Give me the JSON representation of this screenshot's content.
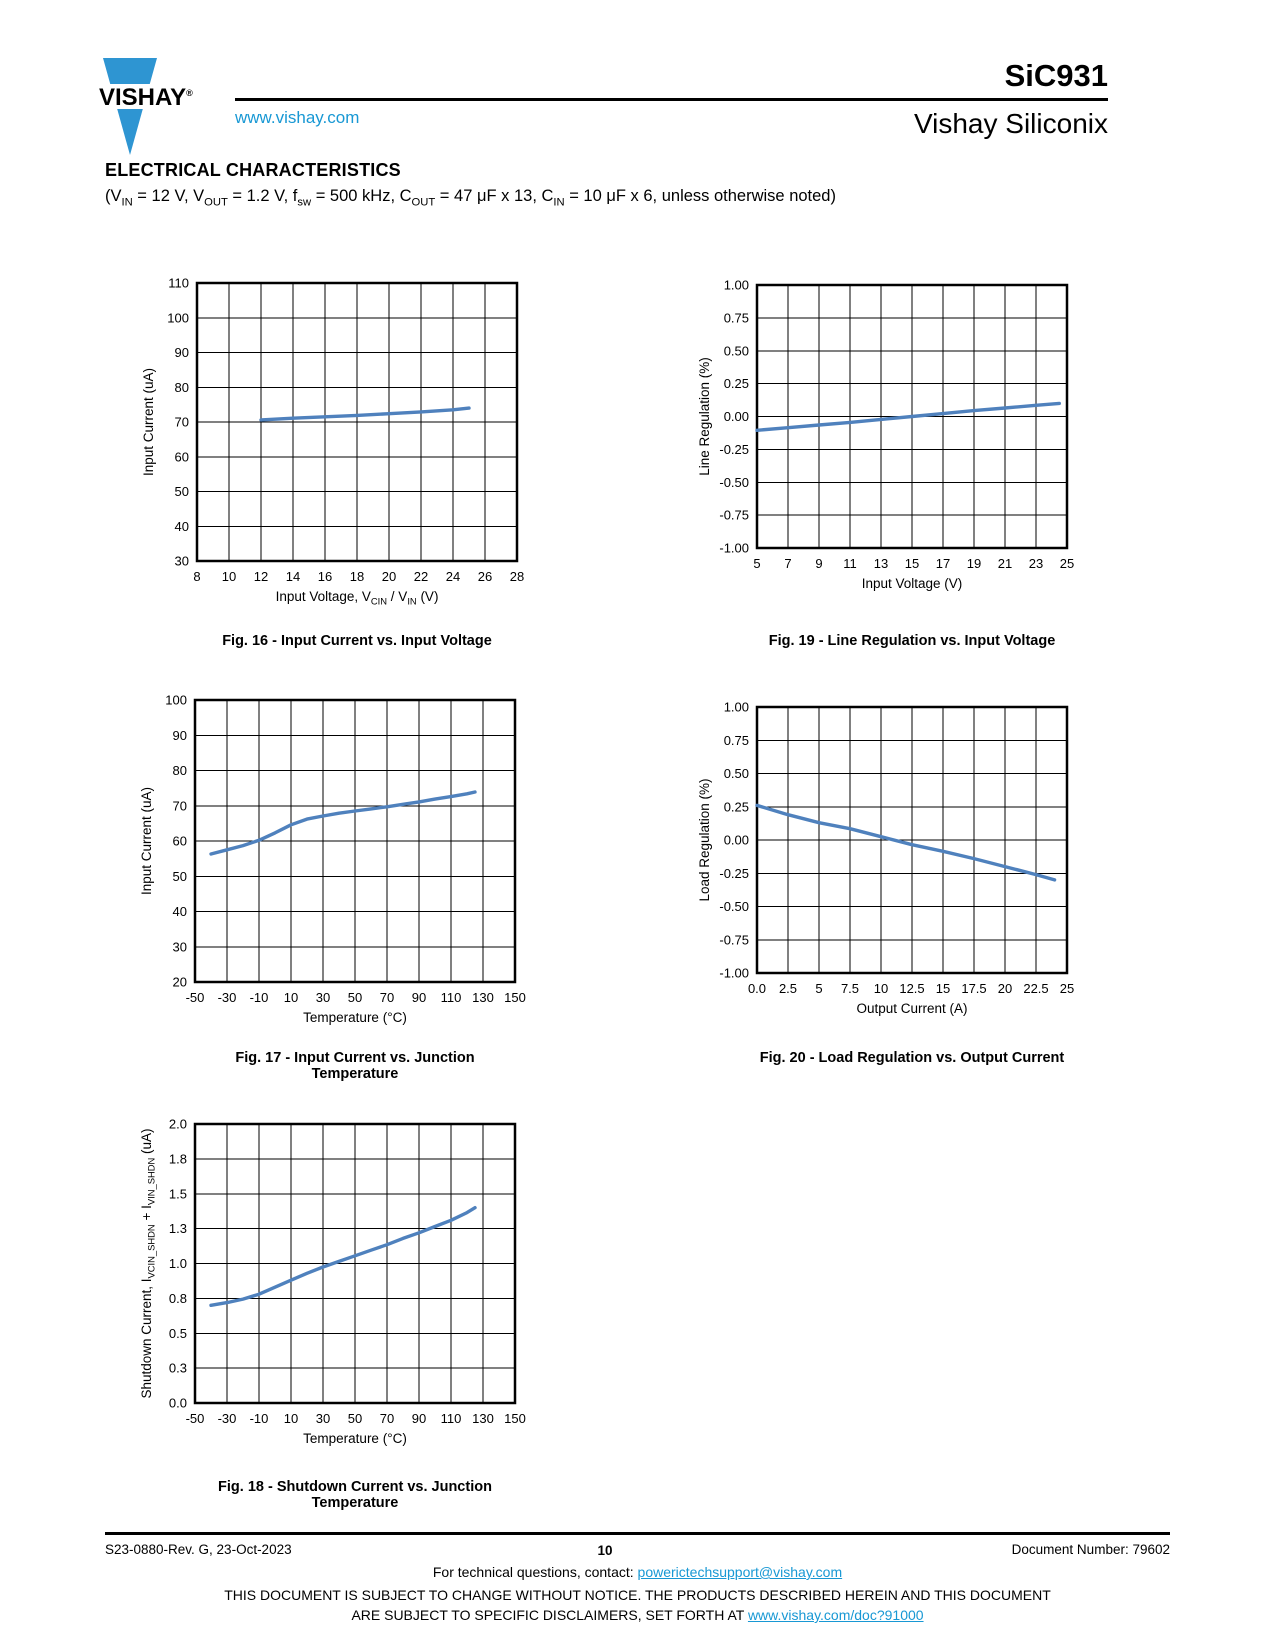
{
  "colors": {
    "curve": "#4f81bd",
    "link": "#1898d4",
    "logo_blue": "#2e95d2"
  },
  "header": {
    "logo_text": "VISHAY",
    "logo_reg": "®",
    "website": "www.vishay.com",
    "part_number": "SiC931",
    "company": "Vishay Siliconix"
  },
  "section": {
    "title": "ELECTRICAL CHARACTERISTICS",
    "conditions": "(V~IN~ = 12 V, V~OUT~ = 1.2 V, f~sw~ = 500 kHz, C~OUT~ = 47 μF x 13, C~IN~ = 10 μF x 6, unless otherwise noted)"
  },
  "chart_data": [
    {
      "id": "fig16",
      "type": "line",
      "title": "Fig. 16 - Input Current vs. Input Voltage",
      "xlabel": "Input Voltage, V~CIN~ / V~IN~ (V)",
      "ylabel": "Input Current (uA)",
      "xlim": [
        8,
        28
      ],
      "ylim": [
        30,
        110
      ],
      "grid": true,
      "xticks": [
        [
          8,
          "8"
        ],
        [
          10,
          "10"
        ],
        [
          12,
          "12"
        ],
        [
          14,
          "14"
        ],
        [
          16,
          "16"
        ],
        [
          18,
          "18"
        ],
        [
          20,
          "20"
        ],
        [
          22,
          "22"
        ],
        [
          24,
          "24"
        ],
        [
          26,
          "26"
        ],
        [
          28,
          "28"
        ]
      ],
      "yticks": [
        [
          110,
          "110"
        ],
        [
          100,
          "100"
        ],
        [
          90,
          "90"
        ],
        [
          80,
          "80"
        ],
        [
          70,
          "70"
        ],
        [
          60,
          "60"
        ],
        [
          50,
          "50"
        ],
        [
          40,
          "40"
        ],
        [
          30,
          "30"
        ]
      ],
      "series": [
        [
          12,
          70.6
        ],
        [
          14,
          71.1
        ],
        [
          16,
          71.5
        ],
        [
          18,
          71.9
        ],
        [
          20,
          72.4
        ],
        [
          22,
          72.9
        ],
        [
          24,
          73.5
        ],
        [
          25,
          74.0
        ]
      ]
    },
    {
      "id": "fig19",
      "type": "line",
      "title": "Fig. 19 - Line Regulation vs. Input Voltage",
      "xlabel": "Input Voltage (V)",
      "ylabel": "Line Regulation (%)",
      "xlim": [
        5,
        25
      ],
      "ylim": [
        -1,
        1
      ],
      "grid": true,
      "xticks": [
        [
          5,
          "5"
        ],
        [
          7,
          "7"
        ],
        [
          9,
          "9"
        ],
        [
          11,
          "11"
        ],
        [
          13,
          "13"
        ],
        [
          15,
          "15"
        ],
        [
          17,
          "17"
        ],
        [
          19,
          "19"
        ],
        [
          21,
          "21"
        ],
        [
          23,
          "23"
        ],
        [
          25,
          "25"
        ]
      ],
      "yticks": [
        [
          1,
          "1.00"
        ],
        [
          0.75,
          "0.75"
        ],
        [
          0.5,
          "0.50"
        ],
        [
          0.25,
          "0.25"
        ],
        [
          0,
          "0.00"
        ],
        [
          -0.25,
          "-0.25"
        ],
        [
          -0.5,
          "-0.50"
        ],
        [
          -0.75,
          "-0.75"
        ],
        [
          -1,
          "-1.00"
        ]
      ],
      "series": [
        [
          5,
          -0.105
        ],
        [
          7,
          -0.085
        ],
        [
          9,
          -0.065
        ],
        [
          11,
          -0.045
        ],
        [
          13,
          -0.022
        ],
        [
          15,
          0.0
        ],
        [
          17,
          0.022
        ],
        [
          19,
          0.045
        ],
        [
          21,
          0.065
        ],
        [
          23,
          0.085
        ],
        [
          24.5,
          0.1
        ]
      ]
    },
    {
      "id": "fig17",
      "type": "line",
      "title": "Fig. 17 - Input Current vs. Junction Temperature",
      "xlabel": "Temperature (°C)",
      "ylabel": "Input Current (uA)",
      "xlim": [
        -50,
        150
      ],
      "ylim": [
        20,
        100
      ],
      "grid": true,
      "xticks": [
        [
          -50,
          "-50"
        ],
        [
          -30,
          "-30"
        ],
        [
          -10,
          "-10"
        ],
        [
          10,
          "10"
        ],
        [
          30,
          "30"
        ],
        [
          50,
          "50"
        ],
        [
          70,
          "70"
        ],
        [
          90,
          "90"
        ],
        [
          110,
          "110"
        ],
        [
          130,
          "130"
        ],
        [
          150,
          "150"
        ]
      ],
      "yticks": [
        [
          100,
          "100"
        ],
        [
          90,
          "90"
        ],
        [
          80,
          "80"
        ],
        [
          70,
          "70"
        ],
        [
          60,
          "60"
        ],
        [
          50,
          "50"
        ],
        [
          40,
          "40"
        ],
        [
          30,
          "30"
        ],
        [
          20,
          "20"
        ]
      ],
      "series": [
        [
          -40,
          56.3
        ],
        [
          -30,
          57.5
        ],
        [
          -20,
          58.7
        ],
        [
          -10,
          60.2
        ],
        [
          0,
          62.3
        ],
        [
          10,
          64.6
        ],
        [
          20,
          66.2
        ],
        [
          30,
          67.1
        ],
        [
          40,
          67.9
        ],
        [
          50,
          68.5
        ],
        [
          60,
          69.1
        ],
        [
          70,
          69.7
        ],
        [
          80,
          70.4
        ],
        [
          90,
          71.1
        ],
        [
          100,
          71.9
        ],
        [
          110,
          72.6
        ],
        [
          120,
          73.4
        ],
        [
          125,
          73.9
        ]
      ]
    },
    {
      "id": "fig20",
      "type": "line",
      "title": "Fig. 20 - Load Regulation vs. Output Current",
      "xlabel": "Output Current (A)",
      "ylabel": "Load Regulation (%)",
      "xlim": [
        0,
        25
      ],
      "ylim": [
        -1,
        1
      ],
      "grid": true,
      "xticks": [
        [
          0,
          "0.0"
        ],
        [
          2.5,
          "2.5"
        ],
        [
          5,
          "5"
        ],
        [
          7.5,
          "7.5"
        ],
        [
          10,
          "10"
        ],
        [
          12.5,
          "12.5"
        ],
        [
          15,
          "15"
        ],
        [
          17.5,
          "17.5"
        ],
        [
          20,
          "20"
        ],
        [
          22.5,
          "22.5"
        ],
        [
          25,
          "25"
        ]
      ],
      "yticks": [
        [
          1,
          "1.00"
        ],
        [
          0.75,
          "0.75"
        ],
        [
          0.5,
          "0.50"
        ],
        [
          0.25,
          "0.25"
        ],
        [
          0,
          "0.00"
        ],
        [
          -0.25,
          "-0.25"
        ],
        [
          -0.5,
          "-0.50"
        ],
        [
          -0.75,
          "-0.75"
        ],
        [
          -1,
          "-1.00"
        ]
      ],
      "series": [
        [
          0,
          0.26
        ],
        [
          2.5,
          0.19
        ],
        [
          5,
          0.13
        ],
        [
          7.5,
          0.085
        ],
        [
          10,
          0.025
        ],
        [
          12.5,
          -0.035
        ],
        [
          15,
          -0.085
        ],
        [
          17.5,
          -0.14
        ],
        [
          20,
          -0.2
        ],
        [
          22.5,
          -0.26
        ],
        [
          24,
          -0.3
        ]
      ]
    },
    {
      "id": "fig18",
      "type": "line",
      "title": "Fig. 18 - Shutdown Current vs. Junction Temperature",
      "xlabel": "Temperature (°C)",
      "ylabel": "Shutdown Current, I~VCIN_SHDN~ + I~VIN_SHDN~ (uA)",
      "xlim": [
        -50,
        150
      ],
      "ylim": [
        0,
        2
      ],
      "grid": true,
      "xticks": [
        [
          -50,
          "-50"
        ],
        [
          -30,
          "-30"
        ],
        [
          -10,
          "-10"
        ],
        [
          10,
          "10"
        ],
        [
          30,
          "30"
        ],
        [
          50,
          "50"
        ],
        [
          70,
          "70"
        ],
        [
          90,
          "90"
        ],
        [
          110,
          "110"
        ],
        [
          130,
          "130"
        ],
        [
          150,
          "150"
        ]
      ],
      "yticks": [
        [
          2,
          "2.0"
        ],
        [
          1.75,
          "1.8"
        ],
        [
          1.5,
          "1.5"
        ],
        [
          1.25,
          "1.3"
        ],
        [
          1,
          "1.0"
        ],
        [
          0.75,
          "0.8"
        ],
        [
          0.5,
          "0.5"
        ],
        [
          0.25,
          "0.3"
        ],
        [
          0,
          "0.0"
        ]
      ],
      "series": [
        [
          -40,
          0.7
        ],
        [
          -30,
          0.72
        ],
        [
          -20,
          0.745
        ],
        [
          -10,
          0.78
        ],
        [
          0,
          0.83
        ],
        [
          10,
          0.88
        ],
        [
          20,
          0.93
        ],
        [
          30,
          0.975
        ],
        [
          40,
          1.015
        ],
        [
          50,
          1.055
        ],
        [
          60,
          1.095
        ],
        [
          70,
          1.135
        ],
        [
          80,
          1.18
        ],
        [
          90,
          1.22
        ],
        [
          100,
          1.265
        ],
        [
          110,
          1.31
        ],
        [
          120,
          1.365
        ],
        [
          125,
          1.4
        ]
      ]
    }
  ],
  "footer": {
    "revision": "S23-0880-Rev. G, 23-Oct-2023",
    "page_number": "10",
    "document_number": "Document Number: 79602",
    "contact_prefix": "For technical questions, contact: ",
    "contact_email": "powerictechsupport@vishay.com",
    "disclaimer_line1": "THIS DOCUMENT IS SUBJECT TO CHANGE WITHOUT NOTICE. THE PRODUCTS DESCRIBED HEREIN AND THIS DOCUMENT",
    "disclaimer_line2_prefix": "ARE SUBJECT TO SPECIFIC DISCLAIMERS, SET FORTH AT ",
    "disclaimer_link": "www.vishay.com/doc?91000"
  }
}
